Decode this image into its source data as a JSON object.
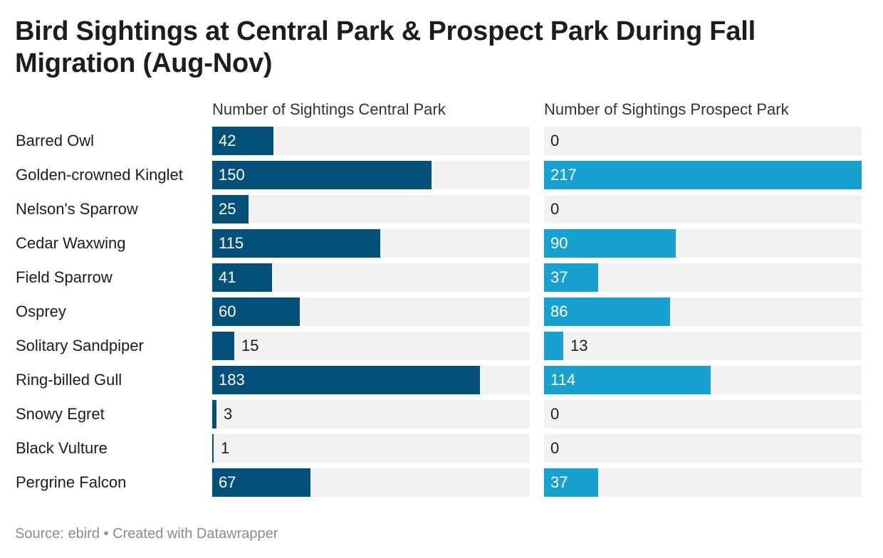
{
  "chart_data": {
    "type": "bar",
    "orientation": "horizontal",
    "layout": "small-multiples",
    "title": "Bird Sightings at Central Park & Prospect Park During Fall Migration (Aug-Nov)",
    "categories": [
      "Barred Owl",
      "Golden-crowned Kinglet",
      "Nelson's Sparrow",
      "Cedar Waxwing",
      "Field Sparrow",
      "Osprey",
      "Solitary Sandpiper",
      "Ring-billed Gull",
      "Snowy Egret",
      "Black Vulture",
      "Pergrine Falcon"
    ],
    "series": [
      {
        "name": "Number of Sightings Central Park",
        "color": "#03507b",
        "values": [
          42,
          150,
          25,
          115,
          41,
          60,
          15,
          183,
          3,
          1,
          67
        ]
      },
      {
        "name": "Number of Sightings Prospect Park",
        "color": "#17a1d0",
        "values": [
          0,
          217,
          0,
          90,
          37,
          86,
          13,
          114,
          0,
          0,
          37
        ]
      }
    ],
    "xlim": [
      0,
      217
    ],
    "grid": false,
    "data_labels": true,
    "source": "Source: ebird • Created with Datawrapper"
  }
}
